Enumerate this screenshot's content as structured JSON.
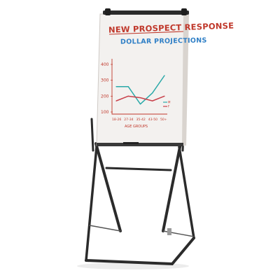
{
  "flipchart": {
    "title": "NEW PROSPECT RESPONSE",
    "subtitle": "DOLLAR PROJECTIONS"
  },
  "colors": {
    "title_ink": "#c0382b",
    "subtitle_ink": "#2f7fc6",
    "frame": "#2b2b2b",
    "board": "#f3f1ef"
  },
  "chart_data": {
    "type": "line",
    "title": "",
    "xlabel": "AGE GROUPS",
    "ylabel": "",
    "categories": [
      "18-26",
      "27-34",
      "35-42",
      "43-50",
      "50+"
    ],
    "yticks": [
      "400",
      "300",
      "200",
      "100"
    ],
    "ylim": [
      100,
      400
    ],
    "legend_placement": "right",
    "series": [
      {
        "name": "M",
        "color": "#2aa9a8",
        "values": [
          260,
          260,
          150,
          220,
          330
        ]
      },
      {
        "name": "F",
        "color": "#c9404a",
        "values": [
          170,
          200,
          190,
          170,
          200
        ]
      }
    ]
  }
}
